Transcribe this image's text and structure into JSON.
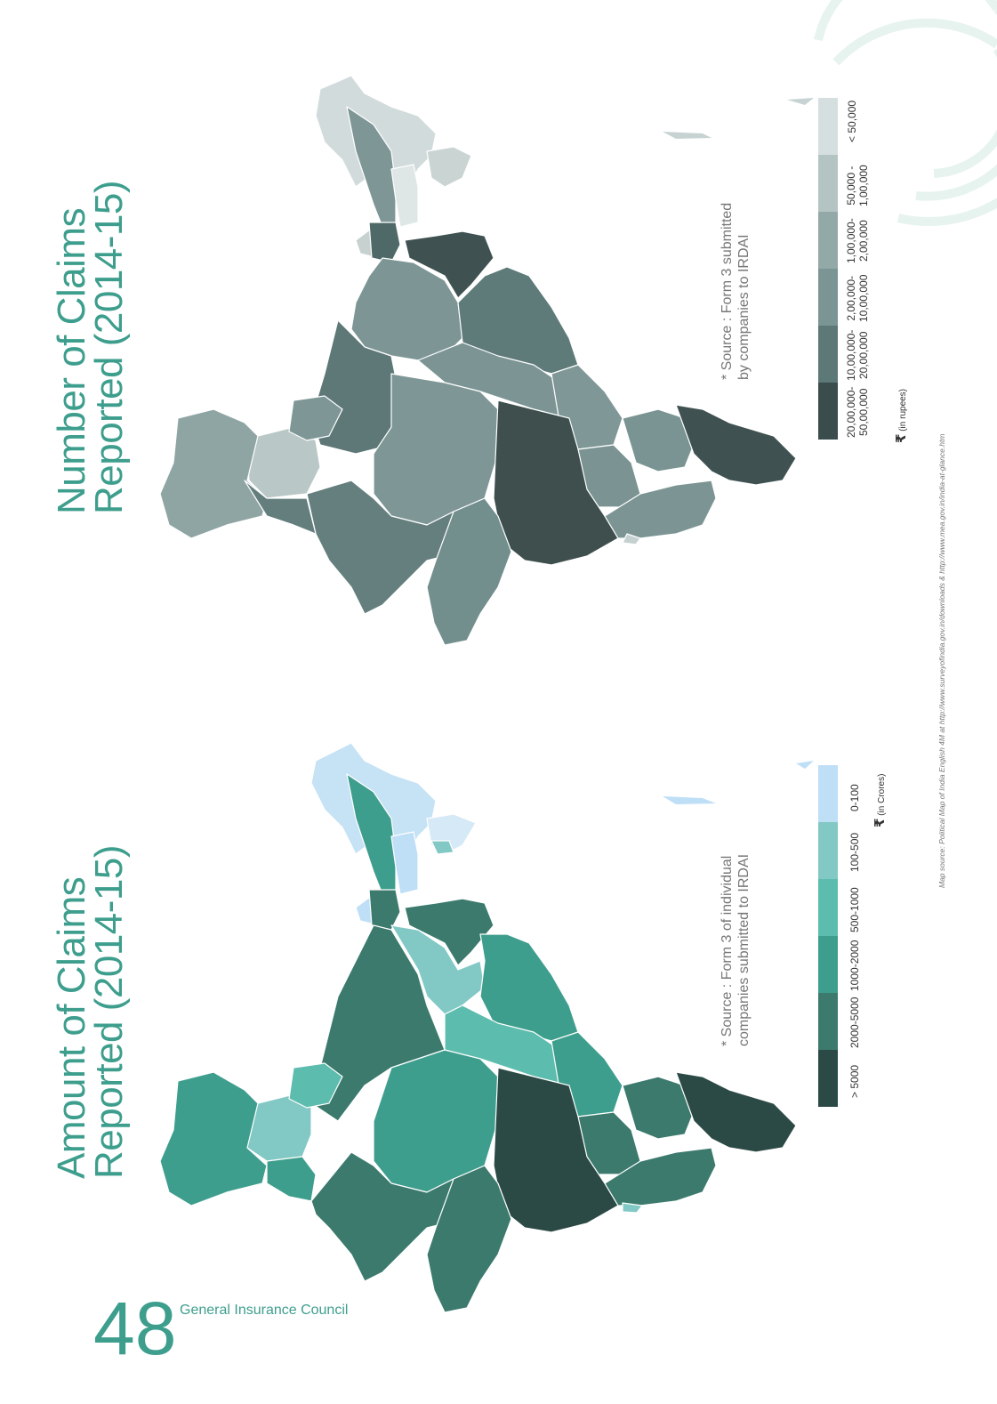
{
  "page": {
    "number": "48",
    "publisher": "General Insurance Council"
  },
  "claims_count_map": {
    "title_line1": "Number of Claims",
    "title_line2": "Reported (2014-15)",
    "source_line1": "* Source : Form 3 submitted",
    "source_line2": "by companies to IRDAI",
    "legend": [
      {
        "label_line1": "20,00,000-",
        "label_line2": "50,00,000",
        "color": "#3a4c4b"
      },
      {
        "label_line1": "10,00,000-",
        "label_line2": "20,00,000",
        "color": "#5c7978"
      },
      {
        "label_line1": "2,00,000-",
        "label_line2": "10,00,000",
        "color": "#7a9594"
      },
      {
        "label_line1": "1,00,000-",
        "label_line2": "2,00,000",
        "color": "#93a9a8"
      },
      {
        "label_line1": "50,000 -",
        "label_line2": "1,00,000",
        "color": "#b4c4c3"
      },
      {
        "label_line1": "< 50,000",
        "label_line2": "",
        "color": "#d6dfdf"
      }
    ],
    "unit": "(in rupees)"
  },
  "claims_amount_map": {
    "title_line1": "Amount of Claims",
    "title_line2": "Reported (2014-15)",
    "source_line1": "* Source : Form 3 of individual",
    "source_line2": "companies submitted to IRDAI",
    "legend": [
      {
        "label": "> 5000",
        "color": "#2c4a45"
      },
      {
        "label": "2000-5000",
        "color": "#3b7a6d"
      },
      {
        "label": "1000-2000",
        "color": "#3e9e8d"
      },
      {
        "label": "500-1000",
        "color": "#5cbcad"
      },
      {
        "label": "100-500",
        "color": "#82c8c5"
      },
      {
        "label": "0-100",
        "color": "#bfdff7"
      }
    ],
    "unit": "(in Crores)"
  },
  "map_source": "Map source: Political Map of India English 4M at http://www.surveyofindia.gov.in/downloads & http://www.mea.gov.in/india-at-glance.htm",
  "currency_symbol": "₹"
}
